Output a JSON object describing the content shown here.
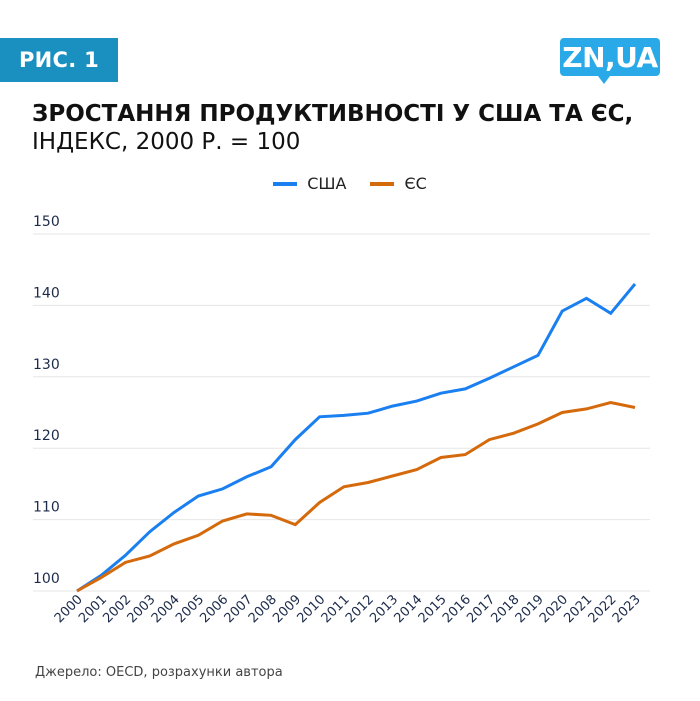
{
  "badge": {
    "label": "РИС. 1"
  },
  "logo": {
    "label": "ZN,UA"
  },
  "header": {
    "title_line1": "ЗРОСТАННЯ ПРОДУКТИВНОСТІ У США ТА ЄС,",
    "title_line2": "ІНДЕКС, 2000 Р. = 100"
  },
  "source": "Джерело: OECD, розрахунки автора",
  "colors": {
    "us": "#1a7ff0",
    "eu": "#d46a0c",
    "badge": "#1a90c0",
    "logo": "#2aa9e8",
    "grid": "#e6e6e6",
    "tick": "#1c2b4a"
  },
  "chart_data": {
    "type": "line",
    "title": "ЗРОСТАННЯ ПРОДУКТИВНОСТІ У США ТА ЄС, ІНДЕКС, 2000 Р. = 100",
    "xlabel": "",
    "ylabel": "",
    "ylim": [
      100,
      150
    ],
    "yticks": [
      "100",
      "110",
      "120",
      "130",
      "140",
      "150"
    ],
    "grid": true,
    "legend_position": "top-center",
    "x": [
      "2000",
      "2001",
      "2002",
      "2003",
      "2004",
      "2005",
      "2006",
      "2007",
      "2008",
      "2009",
      "2010",
      "2011",
      "2012",
      "2013",
      "2014",
      "2015",
      "2016",
      "2017",
      "2018",
      "2019",
      "2020",
      "2021",
      "2022",
      "2023"
    ],
    "series": [
      {
        "name": "США",
        "color": "#1a7ff0",
        "values": [
          100,
          102.2,
          105,
          108.3,
          111,
          113.3,
          114.3,
          116,
          117.4,
          121.2,
          124.4,
          124.6,
          124.9,
          125.9,
          126.6,
          127.7,
          128.3,
          129.8,
          131.4,
          133,
          139.2,
          141,
          138.9,
          143
        ]
      },
      {
        "name": "ЄС",
        "color": "#d46a0c",
        "values": [
          100,
          101.9,
          104,
          104.9,
          106.6,
          107.8,
          109.8,
          110.8,
          110.6,
          109.3,
          112.4,
          114.6,
          115.2,
          116.1,
          117,
          118.7,
          119.1,
          121.2,
          122.1,
          123.4,
          125,
          125.5,
          126.4,
          125.7
        ]
      }
    ]
  }
}
